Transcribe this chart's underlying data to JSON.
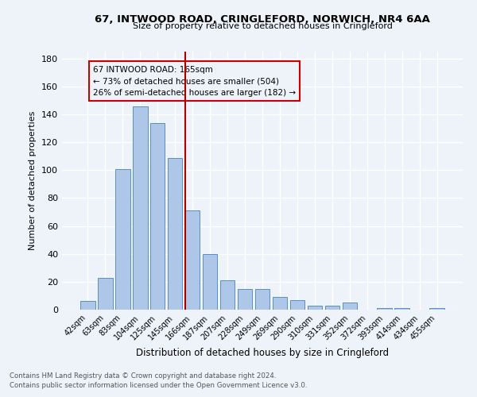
{
  "title": "67, INTWOOD ROAD, CRINGLEFORD, NORWICH, NR4 6AA",
  "subtitle": "Size of property relative to detached houses in Cringleford",
  "xlabel": "Distribution of detached houses by size in Cringleford",
  "ylabel": "Number of detached properties",
  "bar_labels": [
    "42sqm",
    "63sqm",
    "83sqm",
    "104sqm",
    "125sqm",
    "145sqm",
    "166sqm",
    "187sqm",
    "207sqm",
    "228sqm",
    "249sqm",
    "269sqm",
    "290sqm",
    "310sqm",
    "331sqm",
    "352sqm",
    "372sqm",
    "393sqm",
    "414sqm",
    "434sqm",
    "455sqm"
  ],
  "bar_values": [
    6,
    23,
    101,
    146,
    134,
    109,
    71,
    40,
    21,
    15,
    15,
    9,
    7,
    3,
    3,
    5,
    0,
    1,
    1,
    0,
    1
  ],
  "bar_color": "#aec6e8",
  "bar_edge_color": "#5a8fc0",
  "annotation_title": "67 INTWOOD ROAD: 165sqm",
  "annotation_line1": "← 73% of detached houses are smaller (504)",
  "annotation_line2": "26% of semi-detached houses are larger (182) →",
  "ylim": [
    0,
    185
  ],
  "yticks": [
    0,
    20,
    40,
    60,
    80,
    100,
    120,
    140,
    160,
    180
  ],
  "footnote1": "Contains HM Land Registry data © Crown copyright and database right 2024.",
  "footnote2": "Contains public sector information licensed under the Open Government Licence v3.0.",
  "bg_color": "#eef2f9",
  "grid_color": "#ffffff",
  "annotation_box_color": "#cc0000",
  "reference_line_color": "#aa0000"
}
